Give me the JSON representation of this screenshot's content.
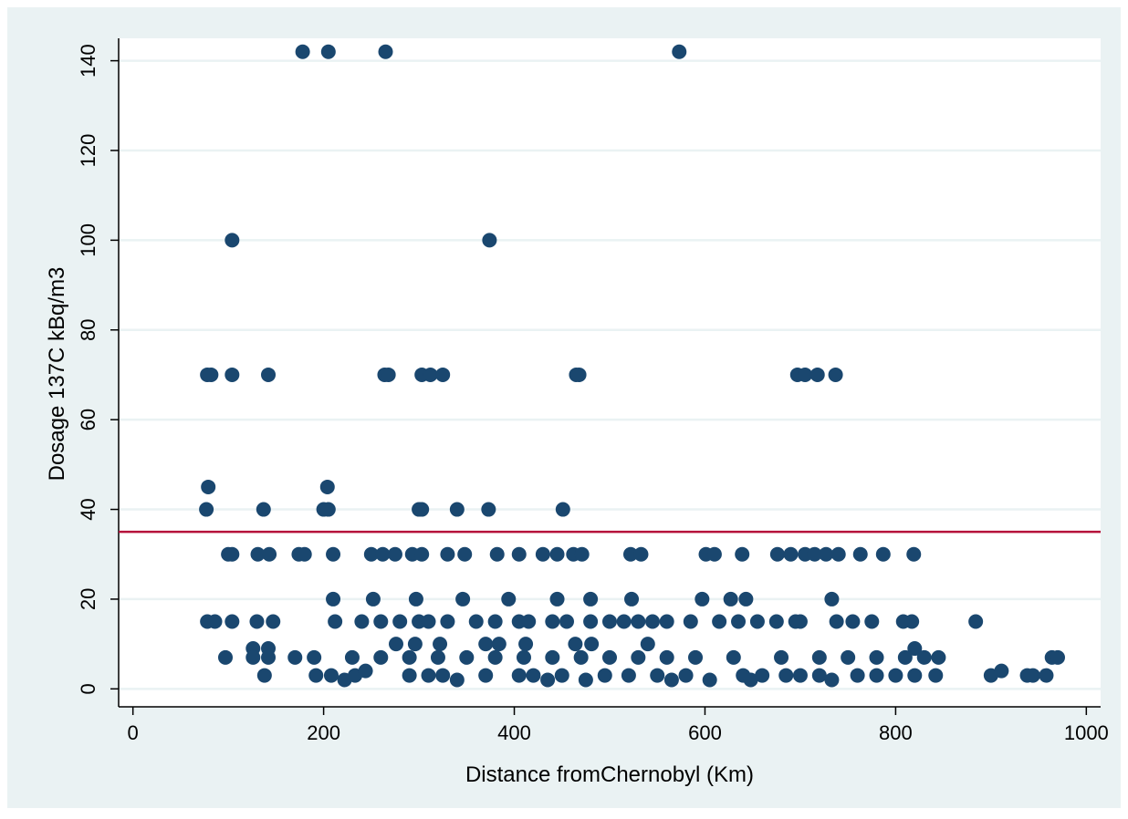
{
  "chart_data": {
    "type": "scatter",
    "title": "",
    "xlabel": "Distance fromChernobyl (Km)",
    "ylabel": "Dosage 137C kBq/m3",
    "xlim": [
      -15,
      1015
    ],
    "ylim": [
      -4,
      145
    ],
    "x_ticks": [
      0,
      200,
      400,
      600,
      800,
      1000
    ],
    "y_ticks": [
      0,
      20,
      40,
      60,
      80,
      100,
      120,
      140
    ],
    "grid": true,
    "legend": "none",
    "reference_line": {
      "orientation": "horizontal",
      "y": 35,
      "color": "#b5123a"
    },
    "marker_color": "#1a476f",
    "points": [
      [
        178,
        142
      ],
      [
        205,
        142
      ],
      [
        265,
        142
      ],
      [
        573,
        142
      ],
      [
        104,
        100
      ],
      [
        374,
        100
      ],
      [
        78,
        70
      ],
      [
        82,
        70
      ],
      [
        104,
        70
      ],
      [
        142,
        70
      ],
      [
        264,
        70
      ],
      [
        268,
        70
      ],
      [
        303,
        70
      ],
      [
        312,
        70
      ],
      [
        325,
        70
      ],
      [
        465,
        70
      ],
      [
        468,
        70
      ],
      [
        697,
        70
      ],
      [
        705,
        70
      ],
      [
        718,
        70
      ],
      [
        737,
        70
      ],
      [
        79,
        45
      ],
      [
        204,
        45
      ],
      [
        77,
        40
      ],
      [
        137,
        40
      ],
      [
        200,
        40
      ],
      [
        205,
        40
      ],
      [
        300,
        40
      ],
      [
        303,
        40
      ],
      [
        340,
        40
      ],
      [
        373,
        40
      ],
      [
        451,
        40
      ],
      [
        100,
        30
      ],
      [
        104,
        30
      ],
      [
        131,
        30
      ],
      [
        143,
        30
      ],
      [
        174,
        30
      ],
      [
        180,
        30
      ],
      [
        210,
        30
      ],
      [
        250,
        30
      ],
      [
        262,
        30
      ],
      [
        275,
        30
      ],
      [
        293,
        30
      ],
      [
        303,
        30
      ],
      [
        330,
        30
      ],
      [
        348,
        30
      ],
      [
        382,
        30
      ],
      [
        405,
        30
      ],
      [
        430,
        30
      ],
      [
        445,
        30
      ],
      [
        462,
        30
      ],
      [
        471,
        30
      ],
      [
        522,
        30
      ],
      [
        533,
        30
      ],
      [
        601,
        30
      ],
      [
        610,
        30
      ],
      [
        639,
        30
      ],
      [
        676,
        30
      ],
      [
        690,
        30
      ],
      [
        705,
        30
      ],
      [
        715,
        30
      ],
      [
        727,
        30
      ],
      [
        740,
        30
      ],
      [
        763,
        30
      ],
      [
        787,
        30
      ],
      [
        819,
        30
      ],
      [
        210,
        20
      ],
      [
        252,
        20
      ],
      [
        297,
        20
      ],
      [
        346,
        20
      ],
      [
        394,
        20
      ],
      [
        445,
        20
      ],
      [
        480,
        20
      ],
      [
        523,
        20
      ],
      [
        597,
        20
      ],
      [
        627,
        20
      ],
      [
        643,
        20
      ],
      [
        733,
        20
      ],
      [
        78,
        15
      ],
      [
        86,
        15
      ],
      [
        104,
        15
      ],
      [
        130,
        15
      ],
      [
        147,
        15
      ],
      [
        212,
        15
      ],
      [
        240,
        15
      ],
      [
        260,
        15
      ],
      [
        280,
        15
      ],
      [
        300,
        15
      ],
      [
        310,
        15
      ],
      [
        330,
        15
      ],
      [
        360,
        15
      ],
      [
        380,
        15
      ],
      [
        405,
        15
      ],
      [
        415,
        15
      ],
      [
        440,
        15
      ],
      [
        455,
        15
      ],
      [
        480,
        15
      ],
      [
        500,
        15
      ],
      [
        515,
        15
      ],
      [
        530,
        15
      ],
      [
        545,
        15
      ],
      [
        560,
        15
      ],
      [
        585,
        15
      ],
      [
        615,
        15
      ],
      [
        635,
        15
      ],
      [
        655,
        15
      ],
      [
        675,
        15
      ],
      [
        695,
        15
      ],
      [
        700,
        15
      ],
      [
        738,
        15
      ],
      [
        755,
        15
      ],
      [
        775,
        15
      ],
      [
        808,
        15
      ],
      [
        817,
        15
      ],
      [
        884,
        15
      ],
      [
        296,
        10
      ],
      [
        276,
        10
      ],
      [
        322,
        10
      ],
      [
        370,
        10
      ],
      [
        384,
        10
      ],
      [
        412,
        10
      ],
      [
        464,
        10
      ],
      [
        481,
        10
      ],
      [
        540,
        10
      ],
      [
        820,
        9
      ],
      [
        126,
        9
      ],
      [
        142,
        9
      ],
      [
        97,
        7
      ],
      [
        126,
        7
      ],
      [
        142,
        7
      ],
      [
        170,
        7
      ],
      [
        190,
        7
      ],
      [
        230,
        7
      ],
      [
        260,
        7
      ],
      [
        290,
        7
      ],
      [
        320,
        7
      ],
      [
        350,
        7
      ],
      [
        380,
        7
      ],
      [
        410,
        7
      ],
      [
        440,
        7
      ],
      [
        470,
        7
      ],
      [
        500,
        7
      ],
      [
        530,
        7
      ],
      [
        560,
        7
      ],
      [
        590,
        7
      ],
      [
        630,
        7
      ],
      [
        680,
        7
      ],
      [
        720,
        7
      ],
      [
        750,
        7
      ],
      [
        780,
        7
      ],
      [
        810,
        7
      ],
      [
        830,
        7
      ],
      [
        845,
        7
      ],
      [
        964,
        7
      ],
      [
        970,
        7
      ],
      [
        138,
        3
      ],
      [
        192,
        3
      ],
      [
        208,
        3
      ],
      [
        222,
        2
      ],
      [
        233,
        3
      ],
      [
        244,
        4
      ],
      [
        290,
        3
      ],
      [
        310,
        3
      ],
      [
        325,
        3
      ],
      [
        340,
        2
      ],
      [
        370,
        3
      ],
      [
        405,
        3
      ],
      [
        420,
        3
      ],
      [
        435,
        2
      ],
      [
        450,
        3
      ],
      [
        475,
        2
      ],
      [
        495,
        3
      ],
      [
        520,
        3
      ],
      [
        550,
        3
      ],
      [
        565,
        2
      ],
      [
        580,
        3
      ],
      [
        605,
        2
      ],
      [
        640,
        3
      ],
      [
        648,
        2
      ],
      [
        660,
        3
      ],
      [
        685,
        3
      ],
      [
        700,
        3
      ],
      [
        720,
        3
      ],
      [
        733,
        2
      ],
      [
        760,
        3
      ],
      [
        780,
        3
      ],
      [
        800,
        3
      ],
      [
        820,
        3
      ],
      [
        842,
        3
      ],
      [
        900,
        3
      ],
      [
        911,
        4
      ],
      [
        938,
        3
      ],
      [
        944,
        3
      ],
      [
        958,
        3
      ]
    ]
  }
}
